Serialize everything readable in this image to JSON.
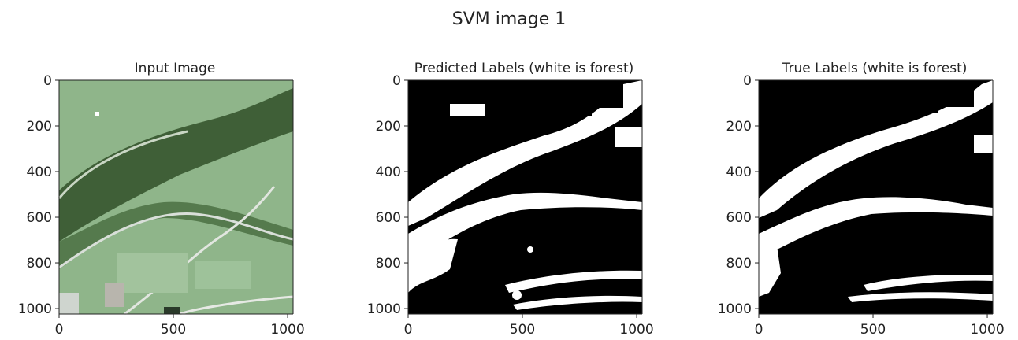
{
  "figure": {
    "title": "SVM image 1"
  },
  "colors": {
    "field_light": "#8fb58a",
    "field_mid": "#76a371",
    "forest_dark": "#3f5f37",
    "road": "#d9dfd9",
    "mask_white": "#ffffff",
    "mask_black": "#000000",
    "axis": "#222222"
  },
  "chart_data": [
    {
      "type": "image",
      "title": "Input Image",
      "image": "aerial-photo-fields-forest-river",
      "xlim": [
        0,
        1024
      ],
      "ylim": [
        1024,
        0
      ],
      "x_ticks": [
        0,
        500,
        1000
      ],
      "y_ticks": [
        0,
        200,
        400,
        600,
        800,
        1000
      ],
      "x_tick_labels": [
        "0",
        "500",
        "1000"
      ],
      "y_tick_labels": [
        "0",
        "200",
        "400",
        "600",
        "800",
        "1000"
      ]
    },
    {
      "type": "image",
      "title": "Predicted Labels (white is forest)",
      "image": "binary-mask-predicted",
      "xlim": [
        0,
        1024
      ],
      "ylim": [
        1024,
        0
      ],
      "x_ticks": [
        0,
        500,
        1000
      ],
      "y_ticks": [
        0,
        200,
        400,
        600,
        800,
        1000
      ],
      "x_tick_labels": [
        "0",
        "500",
        "1000"
      ],
      "y_tick_labels": [
        "0",
        "200",
        "400",
        "600",
        "800",
        "1000"
      ]
    },
    {
      "type": "image",
      "title": "True Labels (white is forest)",
      "image": "binary-mask-true",
      "xlim": [
        0,
        1024
      ],
      "ylim": [
        1024,
        0
      ],
      "x_ticks": [
        0,
        500,
        1000
      ],
      "y_ticks": [
        0,
        200,
        400,
        600,
        800,
        1000
      ],
      "x_tick_labels": [
        "0",
        "500",
        "1000"
      ],
      "y_tick_labels": [
        "0",
        "200",
        "400",
        "600",
        "800",
        "1000"
      ]
    }
  ]
}
